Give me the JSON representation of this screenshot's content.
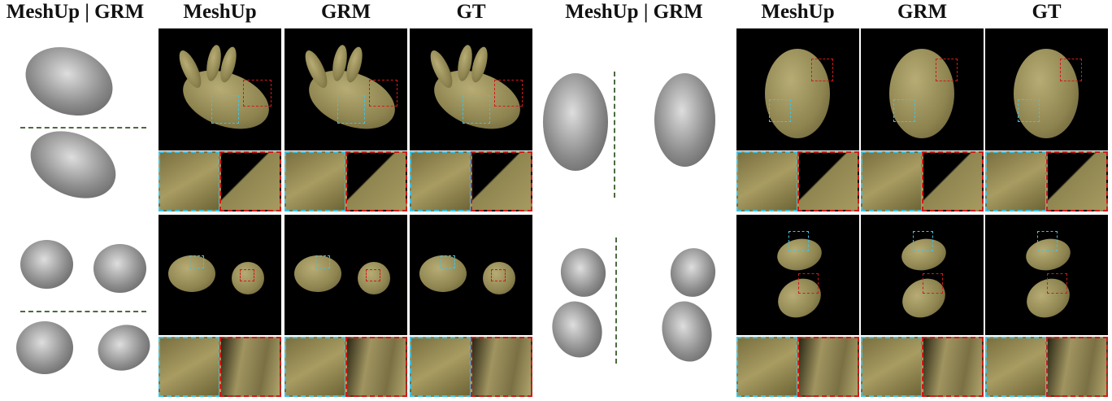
{
  "headers": {
    "left_mesh": "MeshUp | GRM",
    "left_meshup": "MeshUp",
    "left_grm": "GRM",
    "left_gt": "GT",
    "right_mesh": "MeshUp | GRM",
    "right_meshup": "MeshUp",
    "right_grm": "GRM",
    "right_gt": "GT"
  },
  "colors": {
    "zoom_box_1": "#3cc3e6",
    "zoom_box_2": "#d11a1a",
    "divider": "#4b6b3f",
    "background": "#000000"
  }
}
